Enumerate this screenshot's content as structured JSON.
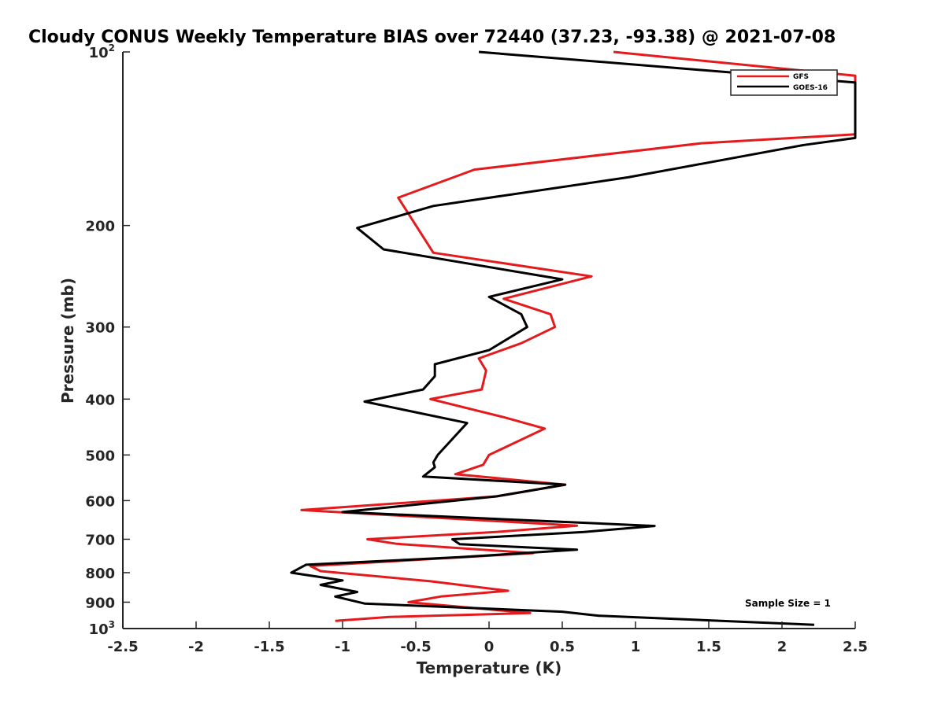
{
  "chart_data": {
    "type": "line",
    "title": "Cloudy CONUS Weekly Temperature BIAS over 72440 (37.23, -93.38) @ 2021-07-08",
    "xlabel": "Temperature (K)",
    "ylabel": "Pressure (mb)",
    "xlim": [
      -2.5,
      2.5
    ],
    "ylim": [
      100,
      1000
    ],
    "y_scale": "log",
    "y_reversed": true,
    "grid": false,
    "x_ticks": [
      -2.5,
      -2,
      -1.5,
      -1,
      -0.5,
      0,
      0.5,
      1,
      1.5,
      2,
      2.5
    ],
    "x_tick_labels": [
      "-2.5",
      "-2",
      "-1.5",
      "-1",
      "-0.5",
      "0",
      "0.5",
      "1",
      "1.5",
      "2",
      "2.5"
    ],
    "y_ticks": [
      100,
      200,
      300,
      400,
      500,
      600,
      700,
      800,
      900,
      1000
    ],
    "y_tick_labels": [
      {
        "base": "10",
        "sup": "2"
      },
      {
        "base": "200",
        "sup": ""
      },
      {
        "base": "300",
        "sup": ""
      },
      {
        "base": "400",
        "sup": ""
      },
      {
        "base": "500",
        "sup": ""
      },
      {
        "base": "600",
        "sup": ""
      },
      {
        "base": "700",
        "sup": ""
      },
      {
        "base": "800",
        "sup": ""
      },
      {
        "base": "900",
        "sup": ""
      },
      {
        "base": "10",
        "sup": "3"
      }
    ],
    "legend_position": "top-right",
    "annotation": "Sample Size = 1",
    "series": [
      {
        "name": "GFS",
        "color": "#e41a1c",
        "points": [
          [
            0.85,
            100
          ],
          [
            2.5,
            110
          ],
          [
            2.5,
            139
          ],
          [
            1.45,
            144
          ],
          [
            -0.1,
            160
          ],
          [
            -0.62,
            179
          ],
          [
            -0.38,
            223
          ],
          [
            0.7,
            245
          ],
          [
            0.1,
            268
          ],
          [
            0.42,
            285
          ],
          [
            0.45,
            300
          ],
          [
            0.22,
            320
          ],
          [
            -0.07,
            340
          ],
          [
            -0.02,
            357
          ],
          [
            -0.05,
            385
          ],
          [
            -0.4,
            400
          ],
          [
            0.1,
            430
          ],
          [
            0.38,
            450
          ],
          [
            0.0,
            500
          ],
          [
            -0.04,
            520
          ],
          [
            -0.23,
            540
          ],
          [
            0.52,
            563
          ],
          [
            0.05,
            590
          ],
          [
            -1.28,
            623
          ],
          [
            0.6,
            663
          ],
          [
            0.05,
            680
          ],
          [
            -0.83,
            700
          ],
          [
            -0.63,
            713
          ],
          [
            0.3,
            740
          ],
          [
            -1.22,
            779
          ],
          [
            -1.15,
            795
          ],
          [
            -0.4,
            828
          ],
          [
            0.13,
            860
          ],
          [
            -0.33,
            880
          ],
          [
            -0.55,
            900
          ],
          [
            0.28,
            940
          ],
          [
            -0.68,
            955
          ],
          [
            -1.05,
            970
          ]
        ]
      },
      {
        "name": "GOES-16",
        "color": "#000000",
        "points": [
          [
            -0.07,
            100
          ],
          [
            2.5,
            113
          ],
          [
            2.5,
            141
          ],
          [
            2.15,
            145
          ],
          [
            0.95,
            165
          ],
          [
            -0.38,
            185
          ],
          [
            -0.9,
            202
          ],
          [
            -0.72,
            220
          ],
          [
            0.5,
            248
          ],
          [
            0.0,
            266
          ],
          [
            0.22,
            285
          ],
          [
            0.26,
            300
          ],
          [
            0.0,
            329
          ],
          [
            -0.37,
            348
          ],
          [
            -0.37,
            365
          ],
          [
            -0.45,
            385
          ],
          [
            -0.85,
            404
          ],
          [
            -0.15,
            440
          ],
          [
            -0.27,
            475
          ],
          [
            -0.35,
            500
          ],
          [
            -0.38,
            515
          ],
          [
            -0.37,
            525
          ],
          [
            -0.45,
            545
          ],
          [
            0.52,
            563
          ],
          [
            0.05,
            590
          ],
          [
            -1.0,
            628
          ],
          [
            1.13,
            664
          ],
          [
            0.65,
            680
          ],
          [
            -0.25,
            700
          ],
          [
            -0.2,
            714
          ],
          [
            0.6,
            730
          ],
          [
            -0.2,
            752
          ],
          [
            -1.25,
            775
          ],
          [
            -1.35,
            800
          ],
          [
            -1.0,
            825
          ],
          [
            -1.15,
            840
          ],
          [
            -0.9,
            864
          ],
          [
            -1.05,
            880
          ],
          [
            -0.85,
            905
          ],
          [
            0.5,
            935
          ],
          [
            0.75,
            950
          ],
          [
            2.22,
            985
          ]
        ]
      }
    ]
  }
}
